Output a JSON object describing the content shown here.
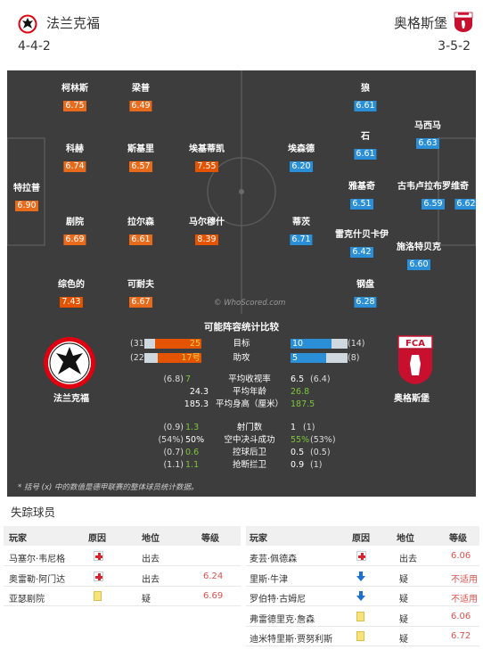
{
  "header": {
    "home_team": "法兰克福",
    "away_team": "奥格斯堡",
    "home_formation": "4-4-2",
    "away_formation": "3-5-2"
  },
  "pitch": {
    "home_players": [
      {
        "name": "柯林斯",
        "rating": "6.75"
      },
      {
        "name": "梁普",
        "rating": "6.49"
      },
      {
        "name": "科赫",
        "rating": "6.74"
      },
      {
        "name": "斯基里",
        "rating": "6.57"
      },
      {
        "name": "埃基蒂凯",
        "rating": "7.55"
      },
      {
        "name": "特拉普",
        "rating": "6.90"
      },
      {
        "name": "剧院",
        "rating": "6.69"
      },
      {
        "name": "拉尔森",
        "rating": "6.61"
      },
      {
        "name": "马尔穆什",
        "rating": "8.39"
      },
      {
        "name": "综色的",
        "rating": "7.43"
      },
      {
        "name": "可耐夫",
        "rating": "6.67"
      }
    ],
    "away_players": [
      {
        "name": "狼",
        "rating": "6.61"
      },
      {
        "name": "马西马",
        "rating": "6.63"
      },
      {
        "name": "埃森德",
        "rating": "6.20"
      },
      {
        "name": "石",
        "rating": "6.61"
      },
      {
        "name": "雅基奇",
        "rating": "6.51"
      },
      {
        "name": "古韦卢拉布罗维奇",
        "rating": "6.59"
      },
      {
        "name": "蒂茨",
        "rating": "6.71"
      },
      {
        "name": "雷克什贝卡伊",
        "rating": "6.42"
      },
      {
        "name": "施洛特贝克",
        "rating": "6.60"
      },
      {
        "name": "钢盘",
        "rating": "6.28"
      }
    ],
    "away_keeper_rating": "6.62",
    "watermark": "© WhoScored.com"
  },
  "stats": {
    "title": "可能阵容统计比较",
    "home_name": "法兰克福",
    "away_name": "奥格斯堡",
    "bars": [
      {
        "label": "目标",
        "home_paren": "(31)",
        "home": 25,
        "home_max": 31,
        "away": 10,
        "away_paren": "(14)",
        "away_max": 14,
        "home_text": "25",
        "away_text": "10"
      },
      {
        "label": "助攻",
        "home_paren": "(22)",
        "home": 17,
        "home_max": 22,
        "away": 5,
        "away_paren": "(8)",
        "away_max": 8,
        "home_text": "17号",
        "away_text": "5"
      }
    ],
    "rows": [
      {
        "label": "平均收视率",
        "home_paren": "(6.8)",
        "home": "7",
        "away": "6.5",
        "away_paren": "(6.4)",
        "home_win": true,
        "away_win": false
      },
      {
        "label": "平均年龄",
        "home_paren": "",
        "home": "24.3",
        "away": "26.8",
        "away_paren": "",
        "home_win": false,
        "away_win": true
      },
      {
        "label": "平均身高（厘米）",
        "home_paren": "",
        "home": "185.3",
        "away": "187.5",
        "away_paren": "",
        "home_win": false,
        "away_win": true
      },
      {
        "label": "射门数",
        "home_paren": "(0.9)",
        "home": "1.3",
        "away": "1",
        "away_paren": "(1)",
        "home_win": true,
        "away_win": false
      },
      {
        "label": "空中决斗成功",
        "home_paren": "(54%)",
        "home": "50%",
        "away": "55%",
        "away_paren": "(53%)",
        "home_win": false,
        "away_win": true
      },
      {
        "label": "控球后卫",
        "home_paren": "(0.7)",
        "home": "0.6",
        "away": "0.5",
        "away_paren": "(0.5)",
        "home_win": true,
        "away_win": false
      },
      {
        "label": "抢断拦卫",
        "home_paren": "(1.1)",
        "home": "1.1",
        "away": "0.9",
        "away_paren": "(1)",
        "home_win": true,
        "away_win": false
      }
    ],
    "footnote": "* 括号 (x) 中的数值是德甲联赛的整体球员统计数据。"
  },
  "missing": {
    "title": "失踪球员",
    "headers": {
      "player": "玩家",
      "reason": "原因",
      "status": "地位",
      "rating": "等级"
    },
    "home": [
      {
        "player": "马塞尔·韦尼格",
        "reason": "injury",
        "status": "出去",
        "rating": ""
      },
      {
        "player": "奥雷勒·阿门达",
        "reason": "injury",
        "status": "出去",
        "rating": "6.24"
      },
      {
        "player": "亚瑟剧院",
        "reason": "card",
        "status": "疑",
        "rating": "6.69"
      }
    ],
    "away": [
      {
        "player": "麦芸·佩德森",
        "reason": "injury",
        "status": "出去",
        "rating": "6.06"
      },
      {
        "player": "里斯·牛津",
        "reason": "arrow",
        "status": "疑",
        "rating": "不适用"
      },
      {
        "player": "罗伯特·古姆尼",
        "reason": "arrow",
        "status": "疑",
        "rating": "不适用"
      },
      {
        "player": "弗雷德里克·詹森",
        "reason": "card",
        "status": "疑",
        "rating": "6.06"
      },
      {
        "player": "迪米特里斯·贾努利斯",
        "reason": "card",
        "status": "疑",
        "rating": "6.72"
      }
    ]
  },
  "colors": {
    "home_accent": "#e45300",
    "away_accent": "#2a8fd6",
    "green": "#7cc63a",
    "pitch": "#3d3d3d"
  },
  "icons": {
    "injury": "red-cross-icon",
    "card": "yellow-card-icon",
    "arrow": "blue-down-arrow-icon"
  }
}
